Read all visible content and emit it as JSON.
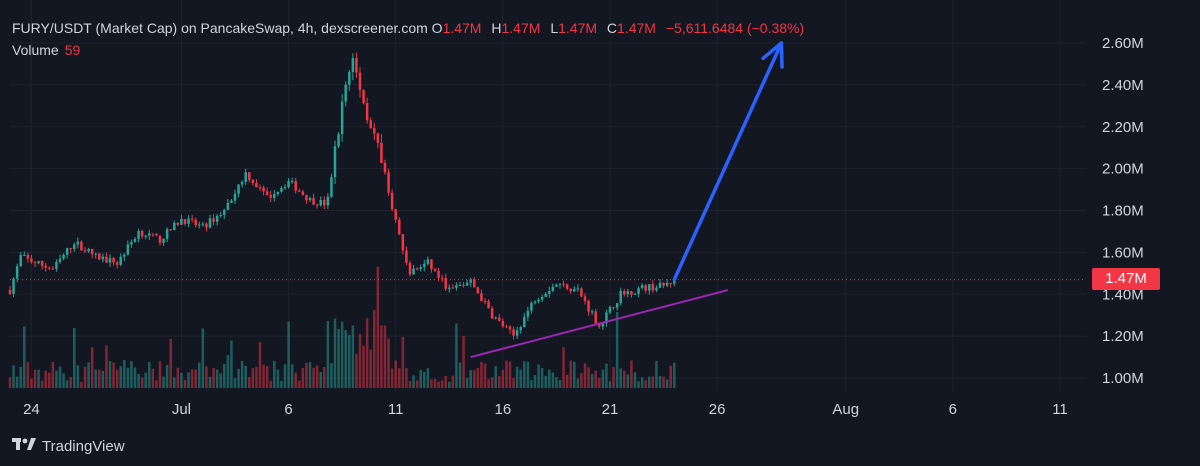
{
  "header": {
    "title": "FURY/USDT (Market Cap) on PancakeSwap, 4h, dexscreener.com",
    "o_label": "O",
    "o_value": "1.47M",
    "h_label": "H",
    "h_value": "1.47M",
    "l_label": "L",
    "l_value": "1.47M",
    "c_label": "C",
    "c_value": "1.47M",
    "change": "−5,611.6484 (−0.38%)"
  },
  "volume": {
    "label": "Volume",
    "value": "59"
  },
  "price_badge": "1.47M",
  "footer": {
    "brand": "TradingView"
  },
  "colors": {
    "background": "#131722",
    "up": "#26a69a",
    "down": "#f23645",
    "arrow": "#2962ff",
    "trendline": "#9c27b0",
    "text": "#d1d4dc"
  },
  "chart_data": {
    "type": "candlestick",
    "title": "FURY/USDT (Market Cap) on PancakeSwap, 4h, dexscreener.com",
    "x_ticks": [
      {
        "label": "24",
        "day": 24
      },
      {
        "label": "Jul",
        "day": 31
      },
      {
        "label": "6",
        "day": 36
      },
      {
        "label": "11",
        "day": 41
      },
      {
        "label": "16",
        "day": 46
      },
      {
        "label": "21",
        "day": 51
      },
      {
        "label": "26",
        "day": 56
      },
      {
        "label": "Aug",
        "day": 62
      },
      {
        "label": "6",
        "day": 67
      },
      {
        "label": "11",
        "day": 72
      }
    ],
    "y_ticks": [
      {
        "label": "2.60M",
        "value": 2.6
      },
      {
        "label": "2.40M",
        "value": 2.4
      },
      {
        "label": "2.20M",
        "value": 2.2
      },
      {
        "label": "2.00M",
        "value": 2.0
      },
      {
        "label": "1.80M",
        "value": 1.8
      },
      {
        "label": "1.60M",
        "value": 1.6
      },
      {
        "label": "1.40M",
        "value": 1.4
      },
      {
        "label": "1.20M",
        "value": 1.2
      },
      {
        "label": "1.00M",
        "value": 1.0
      }
    ],
    "ylim": [
      0.96,
      2.7
    ],
    "last_price": 1.47,
    "close_path": [
      {
        "day": 23.0,
        "close": 1.42
      },
      {
        "day": 23.5,
        "close": 1.58
      },
      {
        "day": 24.2,
        "close": 1.55
      },
      {
        "day": 25.0,
        "close": 1.52
      },
      {
        "day": 26.0,
        "close": 1.65
      },
      {
        "day": 27.0,
        "close": 1.58
      },
      {
        "day": 28.0,
        "close": 1.55
      },
      {
        "day": 29.0,
        "close": 1.7
      },
      {
        "day": 30.0,
        "close": 1.66
      },
      {
        "day": 31.0,
        "close": 1.76
      },
      {
        "day": 32.0,
        "close": 1.72
      },
      {
        "day": 33.0,
        "close": 1.8
      },
      {
        "day": 34.0,
        "close": 1.98
      },
      {
        "day": 35.0,
        "close": 1.86
      },
      {
        "day": 36.0,
        "close": 1.94
      },
      {
        "day": 37.0,
        "close": 1.85
      },
      {
        "day": 37.8,
        "close": 1.83
      },
      {
        "day": 38.6,
        "close": 2.38
      },
      {
        "day": 39.0,
        "close": 2.52
      },
      {
        "day": 39.6,
        "close": 2.28
      },
      {
        "day": 40.2,
        "close": 2.1
      },
      {
        "day": 41.0,
        "close": 1.75
      },
      {
        "day": 41.6,
        "close": 1.5
      },
      {
        "day": 42.5,
        "close": 1.55
      },
      {
        "day": 43.5,
        "close": 1.42
      },
      {
        "day": 44.5,
        "close": 1.46
      },
      {
        "day": 45.5,
        "close": 1.3
      },
      {
        "day": 46.5,
        "close": 1.2
      },
      {
        "day": 47.5,
        "close": 1.38
      },
      {
        "day": 48.5,
        "close": 1.45
      },
      {
        "day": 49.5,
        "close": 1.42
      },
      {
        "day": 50.5,
        "close": 1.25
      },
      {
        "day": 51.5,
        "close": 1.4
      },
      {
        "day": 52.5,
        "close": 1.43
      },
      {
        "day": 53.5,
        "close": 1.44
      },
      {
        "day": 54.0,
        "close": 1.47
      }
    ],
    "annotations": {
      "trendline": {
        "from": {
          "day": 44.5,
          "value": 1.1
        },
        "to": {
          "day": 56.5,
          "value": 1.42
        }
      },
      "arrow": {
        "from": {
          "day": 54.0,
          "value": 1.47
        },
        "to": {
          "day": 59.0,
          "value": 2.6
        }
      }
    }
  }
}
